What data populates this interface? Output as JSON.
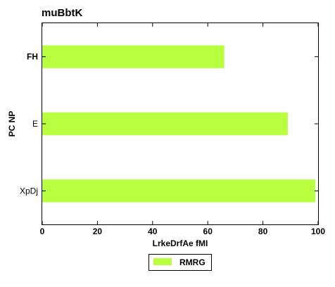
{
  "chart_data": {
    "type": "bar",
    "orientation": "horizontal",
    "title": "muBbtK",
    "xlabel": "LrkeDrfAe fMI",
    "ylabel": "PC NP",
    "categories": [
      "XpDj",
      "E",
      "FH"
    ],
    "bold_categories": [
      "FH"
    ],
    "series": [
      {
        "name": "RMRG",
        "values": [
          99,
          89,
          66
        ],
        "color": "#b8ff40"
      }
    ],
    "xlim": [
      0,
      100
    ],
    "xticks": [
      0,
      20,
      40,
      60,
      80,
      100
    ],
    "grid": false,
    "legend_position": "bottom-center"
  }
}
